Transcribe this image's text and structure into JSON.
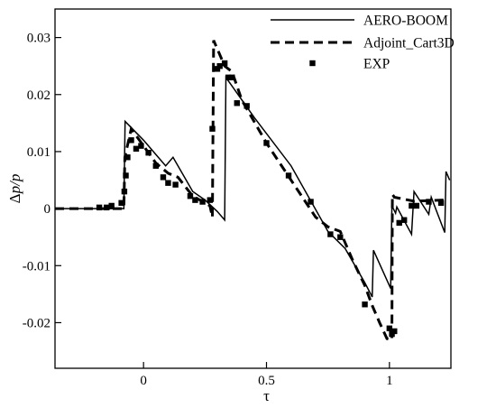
{
  "chart_data": {
    "type": "line",
    "xlabel": "τ",
    "ylabel_main": "Δ",
    "ylabel_var": "p/p",
    "xlim": [
      -0.36,
      1.25
    ],
    "ylim": [
      -0.028,
      0.035
    ],
    "xticks": [
      {
        "value": 0,
        "label": "0"
      },
      {
        "value": 0.5,
        "label": "0.5"
      },
      {
        "value": 1,
        "label": "1"
      }
    ],
    "yticks": [
      {
        "value": -0.02,
        "label": "-0.02"
      },
      {
        "value": -0.01,
        "label": "-0.01"
      },
      {
        "value": 0,
        "label": "0"
      },
      {
        "value": 0.01,
        "label": "0.01"
      },
      {
        "value": 0.02,
        "label": "0.02"
      },
      {
        "value": 0.03,
        "label": "0.03"
      }
    ],
    "legend_position": "top-right",
    "series": [
      {
        "name": "AERO-BOOM",
        "style": "solid",
        "x": [
          -0.36,
          -0.08,
          -0.075,
          0.0,
          0.05,
          0.09,
          0.12,
          0.2,
          0.25,
          0.3,
          0.33,
          0.335,
          0.45,
          0.6,
          0.75,
          0.82,
          0.9,
          0.93,
          0.935,
          1.005,
          1.01,
          1.025,
          1.03,
          1.09,
          1.1,
          1.16,
          1.17,
          1.225,
          1.23,
          1.245
        ],
        "y": [
          0.0,
          0.0,
          0.0153,
          0.012,
          0.0095,
          0.0075,
          0.009,
          0.003,
          0.0015,
          -0.0005,
          -0.002,
          0.023,
          0.016,
          0.0075,
          -0.004,
          -0.007,
          -0.013,
          -0.0155,
          -0.0073,
          -0.014,
          0.0005,
          -0.0008,
          0.0003,
          -0.0045,
          0.003,
          -0.001,
          0.002,
          -0.0042,
          0.0065,
          0.005
        ]
      },
      {
        "name": "Adjoint_Cart3D",
        "style": "dashed",
        "x": [
          -0.36,
          -0.08,
          -0.076,
          -0.05,
          0.0,
          0.05,
          0.1,
          0.14,
          0.2,
          0.25,
          0.27,
          0.28,
          0.285,
          0.3,
          0.33,
          0.36,
          0.4,
          0.5,
          0.6,
          0.7,
          0.75,
          0.8,
          0.85,
          0.9,
          0.93,
          0.96,
          0.99,
          1.01,
          1.012,
          1.02,
          1.1,
          1.22
        ],
        "y": [
          0.0,
          0.0,
          0.009,
          0.014,
          0.011,
          0.008,
          0.0062,
          0.0055,
          0.0022,
          0.001,
          0.0005,
          -0.0015,
          0.0295,
          0.028,
          0.025,
          0.024,
          0.019,
          0.0115,
          0.005,
          -0.0015,
          -0.0032,
          -0.004,
          -0.009,
          -0.0135,
          -0.017,
          -0.02,
          -0.0228,
          -0.023,
          0.0025,
          0.002,
          0.0013,
          0.0015
        ]
      },
      {
        "name": "EXP",
        "style": "markers",
        "x": [
          -0.18,
          -0.15,
          -0.13,
          -0.09,
          -0.078,
          -0.072,
          -0.065,
          -0.05,
          -0.03,
          -0.01,
          0.02,
          0.05,
          0.08,
          0.1,
          0.13,
          0.19,
          0.21,
          0.24,
          0.27,
          0.28,
          0.3,
          0.31,
          0.33,
          0.345,
          0.36,
          0.38,
          0.42,
          0.5,
          0.59,
          0.68,
          0.76,
          0.8,
          0.9,
          1.0,
          1.01,
          1.02,
          1.04,
          1.06,
          1.09,
          1.11,
          1.16,
          1.21
        ],
        "y": [
          0.0002,
          0.0002,
          0.0005,
          0.001,
          0.003,
          0.0058,
          0.009,
          0.012,
          0.0105,
          0.011,
          0.0098,
          0.0075,
          0.0055,
          0.0045,
          0.0042,
          0.0022,
          0.0015,
          0.0012,
          0.0015,
          0.014,
          0.0245,
          0.025,
          0.0255,
          0.023,
          0.023,
          0.0185,
          0.018,
          0.0115,
          0.0058,
          0.0012,
          -0.0045,
          -0.005,
          -0.0168,
          -0.021,
          -0.022,
          -0.0215,
          -0.0025,
          -0.002,
          0.0005,
          0.0005,
          0.0012,
          0.001
        ]
      }
    ]
  }
}
